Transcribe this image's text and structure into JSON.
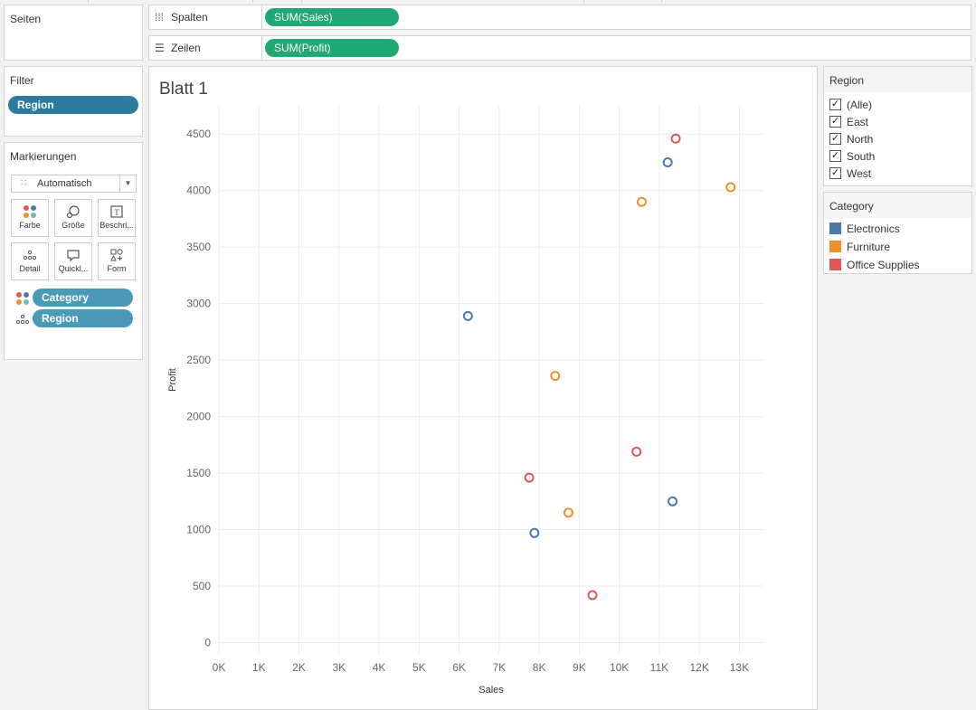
{
  "shelves": {
    "pages_label": "Seiten",
    "columns_label": "Spalten",
    "columns_pill": "SUM(Sales)",
    "rows_label": "Zeilen",
    "rows_pill": "SUM(Profit)"
  },
  "filters": {
    "title": "Filter",
    "pill": "Region"
  },
  "marks": {
    "title": "Markierungen",
    "mark_type": "Automatisch",
    "buttons": [
      {
        "label": "Farbe",
        "icon": "color-dots-icon"
      },
      {
        "label": "Größe",
        "icon": "size-icon"
      },
      {
        "label": "Beschri...",
        "icon": "label-icon"
      },
      {
        "label": "Detail",
        "icon": "detail-icon"
      },
      {
        "label": "Quickl...",
        "icon": "tooltip-icon"
      },
      {
        "label": "Form",
        "icon": "shape-icon"
      }
    ],
    "fields": [
      {
        "name": "Category",
        "role": "color"
      },
      {
        "name": "Region",
        "role": "detail"
      }
    ]
  },
  "sheet": {
    "title": "Blatt 1"
  },
  "region_filter": {
    "title": "Region",
    "items": [
      {
        "label": "(Alle)",
        "checked": true
      },
      {
        "label": "East",
        "checked": true
      },
      {
        "label": "North",
        "checked": true
      },
      {
        "label": "South",
        "checked": true
      },
      {
        "label": "West",
        "checked": true
      }
    ]
  },
  "category_legend": {
    "title": "Category",
    "items": [
      {
        "label": "Electronics",
        "color": "#4e79a7"
      },
      {
        "label": "Furniture",
        "color": "#f28e2b"
      },
      {
        "label": "Office Supplies",
        "color": "#e15759"
      }
    ]
  },
  "chart_data": {
    "type": "scatter",
    "title": "",
    "xlabel": "Sales",
    "ylabel": "Profit",
    "xlim": [
      0,
      13600
    ],
    "ylim": [
      -100,
      4750
    ],
    "x_ticks": [
      0,
      1000,
      2000,
      3000,
      4000,
      5000,
      6000,
      7000,
      8000,
      9000,
      10000,
      11000,
      12000,
      13000
    ],
    "x_tick_labels": [
      "0K",
      "1K",
      "2K",
      "3K",
      "4K",
      "5K",
      "6K",
      "7K",
      "8K",
      "9K",
      "10K",
      "11K",
      "12K",
      "13K"
    ],
    "y_ticks": [
      0,
      500,
      1000,
      1500,
      2000,
      2500,
      3000,
      3500,
      4000,
      4500
    ],
    "y_tick_labels": [
      "0",
      "500",
      "1000",
      "1500",
      "2000",
      "2500",
      "3000",
      "3500",
      "4000",
      "4500"
    ],
    "grid": true,
    "marker": "open-circle",
    "series": [
      {
        "name": "Electronics",
        "color": "#4e79a7",
        "points": [
          [
            6220,
            2890
          ],
          [
            7880,
            970
          ],
          [
            11210,
            4250
          ],
          [
            11330,
            1250
          ]
        ]
      },
      {
        "name": "Furniture",
        "color": "#f28e2b",
        "points": [
          [
            8400,
            2360
          ],
          [
            8730,
            1150
          ],
          [
            10560,
            3900
          ],
          [
            12780,
            4030
          ]
        ]
      },
      {
        "name": "Office Supplies",
        "color": "#e15759",
        "points": [
          [
            7750,
            1460
          ],
          [
            9330,
            420
          ],
          [
            10430,
            1690
          ],
          [
            11410,
            4460
          ]
        ]
      }
    ]
  }
}
